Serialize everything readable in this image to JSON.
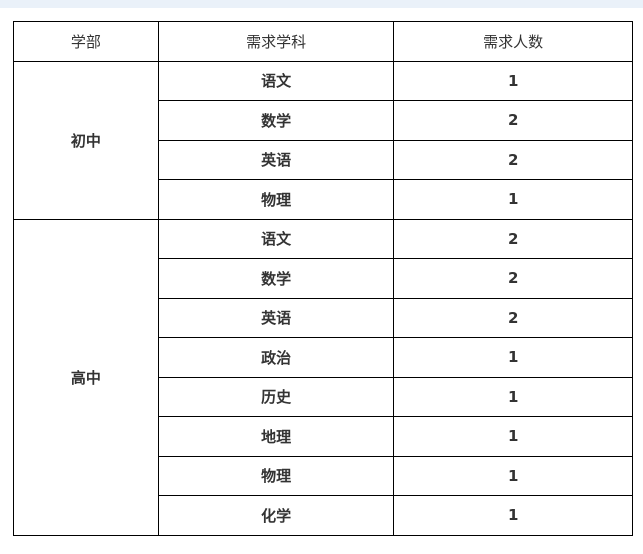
{
  "colors": {
    "top_strip": "#eaf1f9",
    "border": "#000000",
    "text": "#333333"
  },
  "table": {
    "headers": [
      "学部",
      "需求学科",
      "需求人数"
    ],
    "groups": [
      {
        "dept": "初中",
        "rows": [
          {
            "subject": "语文",
            "count": "1"
          },
          {
            "subject": "数学",
            "count": "2"
          },
          {
            "subject": "英语",
            "count": "2"
          },
          {
            "subject": "物理",
            "count": "1"
          }
        ]
      },
      {
        "dept": "高中",
        "rows": [
          {
            "subject": "语文",
            "count": "2"
          },
          {
            "subject": "数学",
            "count": "2"
          },
          {
            "subject": "英语",
            "count": "2"
          },
          {
            "subject": "政治",
            "count": "1"
          },
          {
            "subject": "历史",
            "count": "1"
          },
          {
            "subject": "地理",
            "count": "1"
          },
          {
            "subject": "物理",
            "count": "1"
          },
          {
            "subject": "化学",
            "count": "1"
          }
        ]
      }
    ]
  }
}
